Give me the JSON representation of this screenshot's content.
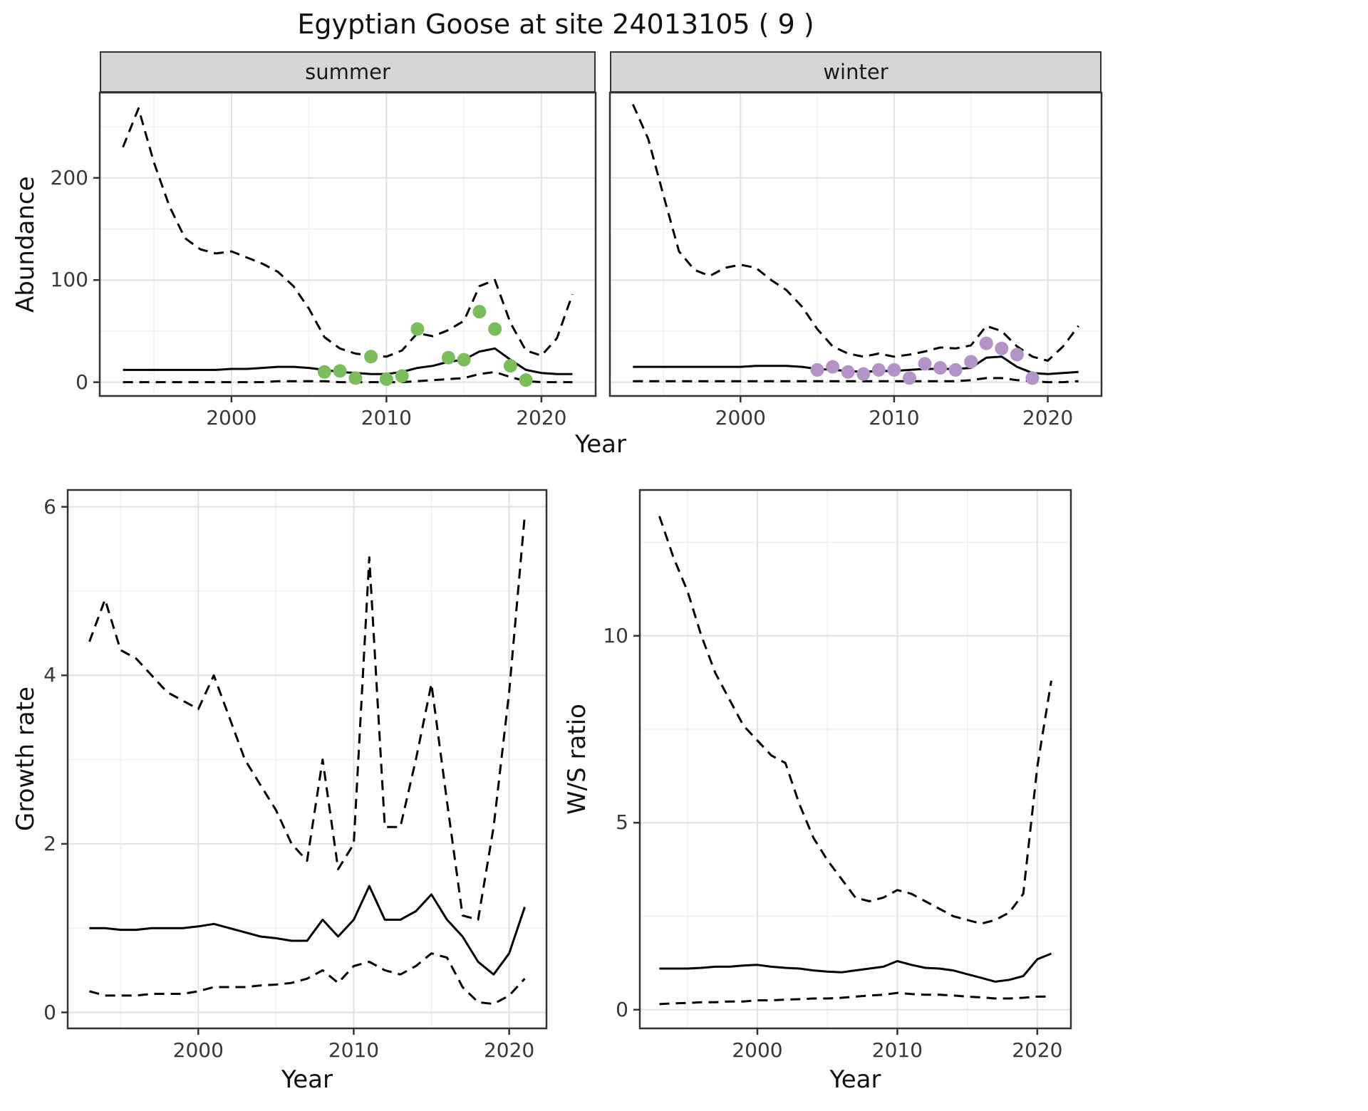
{
  "title": "Egyptian Goose at site 24013105 ( 9 )",
  "facets": {
    "summer": "summer",
    "winter": "winter"
  },
  "axis_labels": {
    "abundance": "Abundance",
    "year": "Year",
    "growth_rate": "Growth rate",
    "ws_ratio": "W/S ratio"
  },
  "colors": {
    "summer_points": "#7bbd5a",
    "winter_points": "#b393c8",
    "line": "#000000",
    "grid_major": "#e2e2e2",
    "grid_minor": "#f0f0f0",
    "panel_border": "#333333",
    "strip_bg": "#d6d6d6",
    "tick_mark": "#333333"
  },
  "chart_data": [
    {
      "id": "abundance_summer",
      "type": "line",
      "facet_label": "summer",
      "ylabel": "Abundance",
      "xlabel": "Year",
      "xlim": [
        1991.5,
        2023.5
      ],
      "ylim": [
        -13.5,
        283.5
      ],
      "x_ticks": [
        2000,
        2010,
        2020
      ],
      "y_ticks": [
        0,
        100,
        200
      ],
      "x_minor_ticks": [
        1995,
        2005,
        2015
      ],
      "y_minor_ticks": [
        50,
        150,
        250
      ],
      "years": [
        1993,
        1994,
        1995,
        1996,
        1997,
        1998,
        1999,
        2000,
        2001,
        2002,
        2003,
        2004,
        2005,
        2006,
        2007,
        2008,
        2009,
        2010,
        2011,
        2012,
        2013,
        2014,
        2015,
        2016,
        2017,
        2018,
        2019,
        2020,
        2021,
        2022
      ],
      "series": [
        {
          "name": "upper-ci",
          "style": "dashed",
          "color": "#000000",
          "values": [
            230,
            268,
            215,
            172,
            141,
            130,
            126,
            128,
            122,
            116,
            108,
            94,
            72,
            44,
            33,
            28,
            26,
            25,
            31,
            48,
            45,
            51,
            60,
            94,
            100,
            58,
            31,
            26,
            43,
            86
          ]
        },
        {
          "name": "estimate",
          "style": "solid",
          "color": "#000000",
          "values": [
            12,
            12,
            12,
            12,
            12,
            12,
            12,
            13,
            13,
            14,
            15,
            15,
            14,
            12,
            10,
            9,
            8,
            8,
            10,
            14,
            16,
            20,
            22,
            30,
            33,
            22,
            12,
            9,
            8,
            8
          ]
        },
        {
          "name": "lower-ci",
          "style": "dashed",
          "color": "#000000",
          "values": [
            0,
            0,
            0,
            0,
            0,
            0,
            0,
            0,
            0,
            0,
            1,
            1,
            1,
            1,
            0,
            0,
            0,
            0,
            0,
            1,
            2,
            3,
            4,
            8,
            10,
            5,
            1,
            0,
            0,
            0
          ]
        },
        {
          "name": "observed-counts",
          "style": "points",
          "color": "#7bbd5a",
          "x": [
            2006,
            2007,
            2008,
            2009,
            2010,
            2011,
            2012,
            2014,
            2015,
            2016,
            2017,
            2018,
            2019
          ],
          "values": [
            10,
            11,
            4,
            25,
            3,
            6,
            52,
            24,
            22,
            69,
            52,
            16,
            2
          ]
        }
      ]
    },
    {
      "id": "abundance_winter",
      "type": "line",
      "facet_label": "winter",
      "ylabel": "Abundance",
      "xlabel": "Year",
      "xlim": [
        1991.5,
        2023.5
      ],
      "ylim": [
        -13.5,
        283.5
      ],
      "x_ticks": [
        2000,
        2010,
        2020
      ],
      "y_ticks": [
        0,
        100,
        200
      ],
      "x_minor_ticks": [
        1995,
        2005,
        2015
      ],
      "y_minor_ticks": [
        50,
        150,
        250
      ],
      "years": [
        1993,
        1994,
        1995,
        1996,
        1997,
        1998,
        1999,
        2000,
        2001,
        2002,
        2003,
        2004,
        2005,
        2006,
        2007,
        2008,
        2009,
        2010,
        2011,
        2012,
        2013,
        2014,
        2015,
        2016,
        2017,
        2018,
        2019,
        2020,
        2021,
        2022
      ],
      "series": [
        {
          "name": "upper-ci",
          "style": "dashed",
          "color": "#000000",
          "values": [
            272,
            238,
            182,
            128,
            110,
            104,
            112,
            115,
            112,
            100,
            90,
            74,
            52,
            35,
            28,
            25,
            28,
            25,
            27,
            30,
            34,
            33,
            36,
            55,
            50,
            35,
            25,
            21,
            35,
            55
          ]
        },
        {
          "name": "estimate",
          "style": "solid",
          "color": "#000000",
          "values": [
            15,
            15,
            15,
            15,
            15,
            15,
            15,
            15,
            16,
            16,
            16,
            15,
            13,
            12,
            11,
            10,
            11,
            11,
            12,
            13,
            13,
            13,
            14,
            24,
            25,
            15,
            9,
            8,
            9,
            10
          ]
        },
        {
          "name": "lower-ci",
          "style": "dashed",
          "color": "#000000",
          "values": [
            1,
            1,
            1,
            1,
            1,
            1,
            1,
            1,
            1,
            1,
            1,
            1,
            1,
            1,
            1,
            1,
            1,
            1,
            1,
            1,
            1,
            1,
            2,
            4,
            4,
            2,
            1,
            0,
            0,
            1
          ]
        },
        {
          "name": "observed-counts",
          "style": "points",
          "color": "#b393c8",
          "x": [
            2005,
            2006,
            2007,
            2008,
            2009,
            2010,
            2011,
            2012,
            2013,
            2014,
            2015,
            2016,
            2017,
            2018,
            2019
          ],
          "values": [
            12,
            15,
            10,
            8,
            12,
            12,
            4,
            18,
            14,
            12,
            20,
            38,
            33,
            27,
            4
          ]
        }
      ]
    },
    {
      "id": "growth_rate",
      "type": "line",
      "ylabel": "Growth rate",
      "xlabel": "Year",
      "xlim": [
        1991.6,
        2022.4
      ],
      "ylim": [
        -0.19,
        6.2
      ],
      "x_ticks": [
        2000,
        2010,
        2020
      ],
      "y_ticks": [
        0,
        2,
        4,
        6
      ],
      "x_minor_ticks": [
        1995,
        2005,
        2015
      ],
      "y_minor_ticks": [
        1,
        3,
        5
      ],
      "years": [
        1993,
        1994,
        1995,
        1996,
        1997,
        1998,
        1999,
        2000,
        2001,
        2002,
        2003,
        2004,
        2005,
        2006,
        2007,
        2008,
        2009,
        2010,
        2011,
        2012,
        2013,
        2014,
        2015,
        2016,
        2017,
        2018,
        2019,
        2020,
        2021
      ],
      "series": [
        {
          "name": "upper-ci",
          "style": "dashed",
          "color": "#000000",
          "values": [
            4.4,
            4.9,
            4.3,
            4.2,
            4.0,
            3.8,
            3.7,
            3.6,
            4.0,
            3.5,
            3.0,
            2.7,
            2.4,
            2.0,
            1.8,
            3.0,
            1.7,
            2.0,
            5.4,
            2.2,
            2.2,
            3.0,
            3.9,
            2.5,
            1.15,
            1.1,
            2.2,
            3.8,
            5.9
          ]
        },
        {
          "name": "estimate",
          "style": "solid",
          "color": "#000000",
          "values": [
            1.0,
            1.0,
            0.98,
            0.98,
            1.0,
            1.0,
            1.0,
            1.02,
            1.05,
            1.0,
            0.95,
            0.9,
            0.88,
            0.85,
            0.85,
            1.1,
            0.9,
            1.1,
            1.5,
            1.1,
            1.1,
            1.2,
            1.4,
            1.1,
            0.9,
            0.6,
            0.45,
            0.7,
            1.25
          ]
        },
        {
          "name": "lower-ci",
          "style": "dashed",
          "color": "#000000",
          "values": [
            0.25,
            0.2,
            0.2,
            0.2,
            0.22,
            0.22,
            0.22,
            0.25,
            0.3,
            0.3,
            0.3,
            0.32,
            0.33,
            0.35,
            0.4,
            0.5,
            0.35,
            0.55,
            0.6,
            0.5,
            0.45,
            0.55,
            0.7,
            0.65,
            0.3,
            0.12,
            0.1,
            0.2,
            0.4
          ]
        }
      ]
    },
    {
      "id": "ws_ratio",
      "type": "line",
      "ylabel": "W/S ratio",
      "xlabel": "Year",
      "xlim": [
        1991.6,
        2022.4
      ],
      "ylim": [
        -0.5,
        13.9
      ],
      "x_ticks": [
        2000,
        2010,
        2020
      ],
      "y_ticks": [
        0,
        5,
        10
      ],
      "x_minor_ticks": [
        1995,
        2005,
        2015
      ],
      "y_minor_ticks": [
        2.5,
        7.5,
        12.5
      ],
      "years": [
        1993,
        1994,
        1995,
        1996,
        1997,
        1998,
        1999,
        2000,
        2001,
        2002,
        2003,
        2004,
        2005,
        2006,
        2007,
        2008,
        2009,
        2010,
        2011,
        2012,
        2013,
        2014,
        2015,
        2016,
        2017,
        2018,
        2019,
        2020,
        2021
      ],
      "series": [
        {
          "name": "upper-ci",
          "style": "dashed",
          "color": "#000000",
          "values": [
            13.2,
            12.1,
            11.2,
            10.0,
            9.0,
            8.3,
            7.6,
            7.2,
            6.8,
            6.6,
            5.5,
            4.6,
            4.0,
            3.5,
            3.0,
            2.9,
            3.0,
            3.2,
            3.1,
            2.9,
            2.7,
            2.5,
            2.4,
            2.3,
            2.4,
            2.6,
            3.1,
            6.5,
            8.8
          ]
        },
        {
          "name": "estimate",
          "style": "solid",
          "color": "#000000",
          "values": [
            1.1,
            1.1,
            1.1,
            1.12,
            1.15,
            1.15,
            1.18,
            1.2,
            1.15,
            1.12,
            1.1,
            1.05,
            1.02,
            1.0,
            1.05,
            1.1,
            1.15,
            1.3,
            1.2,
            1.12,
            1.1,
            1.05,
            0.95,
            0.85,
            0.75,
            0.8,
            0.9,
            1.35,
            1.5
          ]
        },
        {
          "name": "lower-ci",
          "style": "dashed",
          "color": "#000000",
          "values": [
            0.15,
            0.17,
            0.18,
            0.2,
            0.2,
            0.22,
            0.22,
            0.25,
            0.25,
            0.27,
            0.28,
            0.3,
            0.3,
            0.32,
            0.35,
            0.38,
            0.4,
            0.45,
            0.42,
            0.4,
            0.4,
            0.38,
            0.35,
            0.33,
            0.3,
            0.3,
            0.32,
            0.35,
            0.35
          ]
        }
      ]
    }
  ]
}
